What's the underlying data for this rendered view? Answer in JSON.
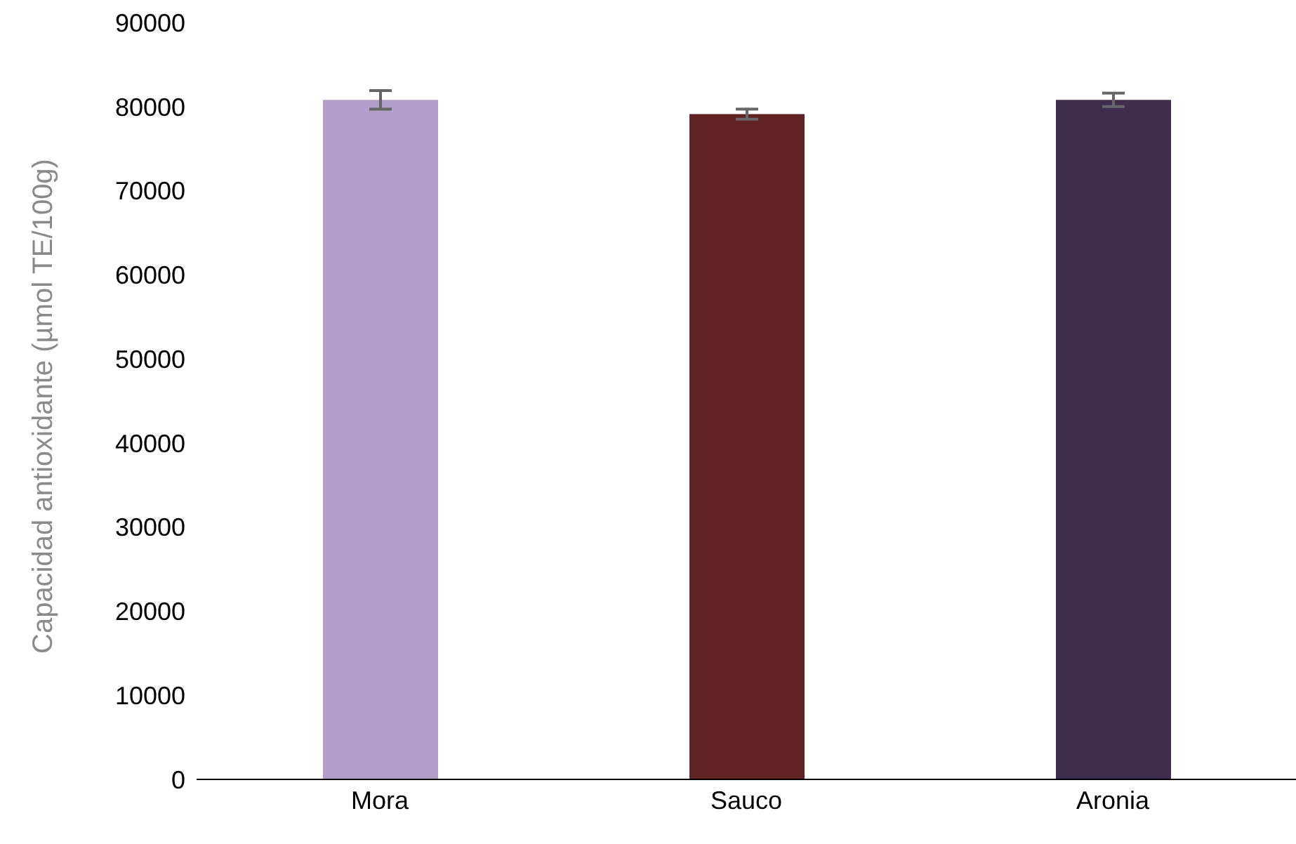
{
  "chart_data": {
    "type": "bar",
    "ylabel": "Capacidad antioxidante (µmol TE/100g)",
    "categories": [
      "Mora",
      "Sauco",
      "Aronia"
    ],
    "values": [
      80800,
      79100,
      80800
    ],
    "colors": [
      "#b19fc9",
      "#612224",
      "#3e2d4f"
    ],
    "errors": [
      1100,
      600,
      800
    ],
    "ylim": [
      0,
      90000
    ],
    "yticks": [
      0,
      10000,
      20000,
      30000,
      40000,
      50000,
      60000,
      70000,
      80000,
      90000
    ],
    "grid": false,
    "legend": false
  }
}
